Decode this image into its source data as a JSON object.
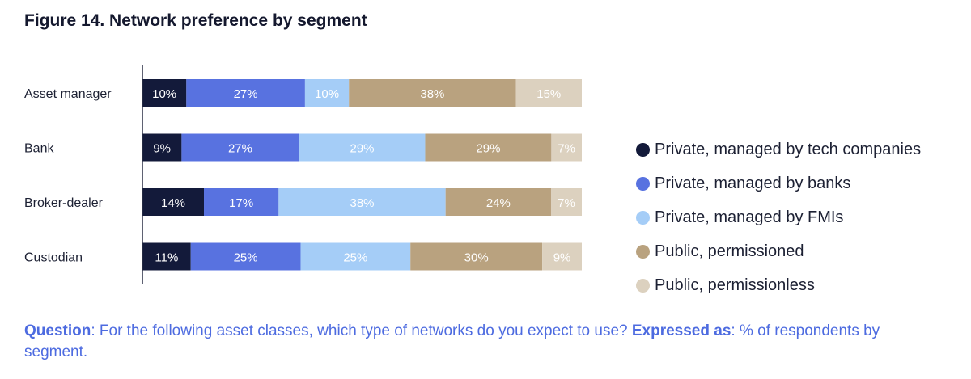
{
  "title": "Figure 14. Network preference by segment",
  "chart_data": {
    "type": "bar",
    "orientation": "horizontal",
    "stacked": true,
    "categories": [
      "Asset manager",
      "Bank",
      "Broker-dealer",
      "Custodian"
    ],
    "series": [
      {
        "name": "Private, managed by tech companies",
        "color": "#131a3a",
        "label_color": "#ffffff",
        "values": [
          10,
          9,
          14,
          11
        ]
      },
      {
        "name": "Private, managed by banks",
        "color": "#5872e0",
        "label_color": "#ffffff",
        "values": [
          27,
          27,
          17,
          25
        ]
      },
      {
        "name": "Private, managed by FMIs",
        "color": "#a5cdf7",
        "label_color": "#ffffff",
        "values": [
          10,
          29,
          38,
          25
        ]
      },
      {
        "name": "Public, permissioned",
        "color": "#b9a27f",
        "label_color": "#ffffff",
        "values": [
          38,
          29,
          24,
          30
        ]
      },
      {
        "name": "Public, permissionless",
        "color": "#dcd1bf",
        "label_color": "#ffffff",
        "values": [
          15,
          7,
          7,
          9
        ]
      }
    ],
    "xlim": [
      0,
      100
    ],
    "value_suffix": "%",
    "legend_position": "right"
  },
  "footer": {
    "question_label": "Question",
    "question_text": ": For the following asset classes, which type of networks do you expect to use? ",
    "expressed_label": "Expressed as",
    "expressed_text": ": % of respondents by segment."
  }
}
